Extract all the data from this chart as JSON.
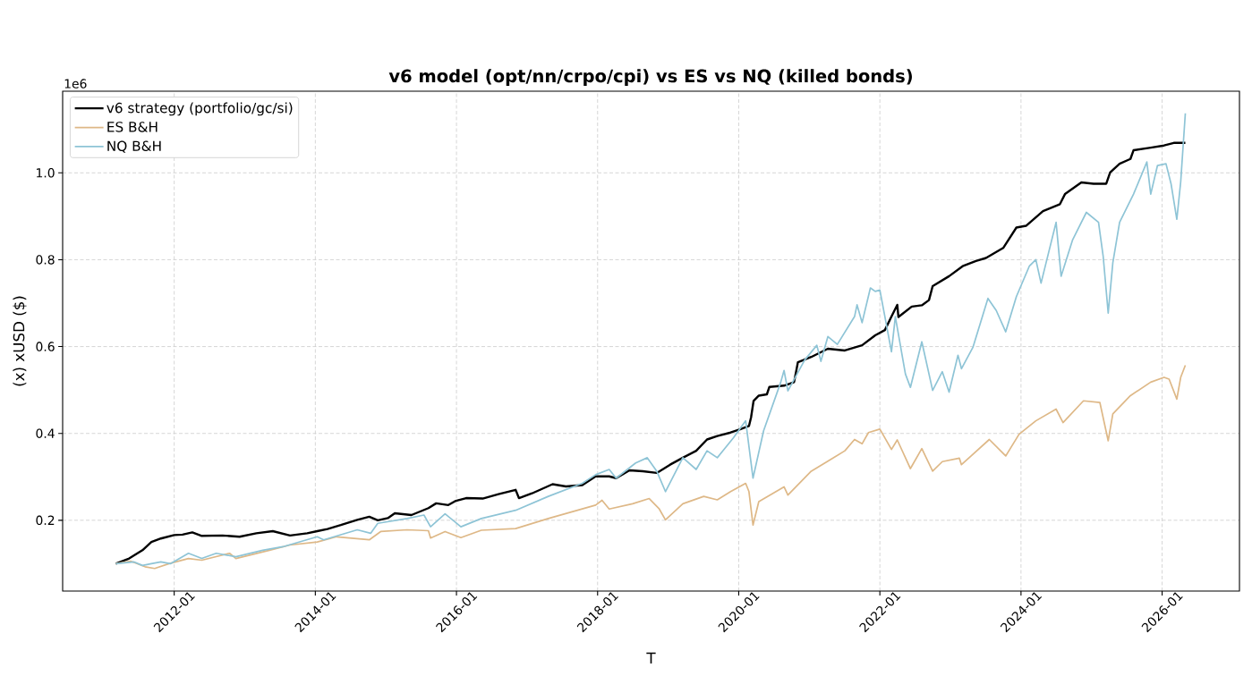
{
  "chart_data": {
    "type": "line",
    "title": "v6 model (opt/nn/crpo/cpi) vs ES vs NQ  (killed bonds)",
    "xlabel": "T",
    "ylabel": "(x) xUSD ($)",
    "annotations": [
      "1e6"
    ],
    "xlim": [
      "2010-06-03",
      "2027-02-05"
    ],
    "ylim": [
      0.037,
      1.188
    ],
    "xticks": [
      {
        "value": "2012-01",
        "label": "2012-01"
      },
      {
        "value": "2014-01",
        "label": "2014-01"
      },
      {
        "value": "2016-01",
        "label": "2016-01"
      },
      {
        "value": "2018-01",
        "label": "2018-01"
      },
      {
        "value": "2020-01",
        "label": "2020-01"
      },
      {
        "value": "2022-01",
        "label": "2022-01"
      },
      {
        "value": "2024-01",
        "label": "2024-01"
      },
      {
        "value": "2026-01",
        "label": "2026-01"
      }
    ],
    "yticks": [
      {
        "value": 0.2,
        "label": "0.2"
      },
      {
        "value": 0.4,
        "label": "0.4"
      },
      {
        "value": 0.6,
        "label": "0.6"
      },
      {
        "value": 0.8,
        "label": "0.8"
      },
      {
        "value": 1.0,
        "label": "1.0"
      }
    ],
    "grid": true,
    "legend": "top left",
    "marker": "none",
    "line_style": "solid",
    "series": [
      {
        "name": "v6 strategy (portfolio/gc/si)",
        "color": "#000000",
        "x": [
          "2011-03-05",
          "2011-05-13",
          "2011-07-21",
          "2011-09-05",
          "2011-10-24",
          "2012-01-01",
          "2012-02-13",
          "2012-04-04",
          "2012-05-23",
          "2012-09-08",
          "2012-12-05",
          "2013-03-02",
          "2013-05-26",
          "2013-08-23",
          "2013-11-20",
          "2014-01-11",
          "2014-03-05",
          "2014-05-13",
          "2014-08-06",
          "2014-10-07",
          "2014-11-20",
          "2015-01-11",
          "2015-02-16",
          "2015-05-13",
          "2015-08-09",
          "2015-09-18",
          "2015-11-20",
          "2015-12-25",
          "2016-02-20",
          "2016-05-16",
          "2016-08-06",
          "2016-11-03",
          "2016-11-20",
          "2017-01-27",
          "2017-05-13",
          "2017-07-21",
          "2017-10-14",
          "2017-12-22",
          "2018-03-02",
          "2018-04-07",
          "2018-06-15",
          "2018-08-23",
          "2018-11-03",
          "2019-01-11",
          "2019-03-18",
          "2019-05-26",
          "2019-07-21",
          "2019-09-12",
          "2019-11-20",
          "2020-01-11",
          "2020-02-23",
          "2020-03-05",
          "2020-03-18",
          "2020-04-14",
          "2020-05-26",
          "2020-06-08",
          "2020-08-23",
          "2020-10-14",
          "2020-11-03",
          "2021-01-11",
          "2021-04-07",
          "2021-07-04",
          "2021-10-01",
          "2021-12-08",
          "2022-01-27",
          "2022-03-02",
          "2022-04-01",
          "2022-04-07",
          "2022-06-15",
          "2022-08-06",
          "2022-09-12",
          "2022-10-01",
          "2022-12-25",
          "2023-03-05",
          "2023-05-13",
          "2023-07-04",
          "2023-10-01",
          "2023-12-08",
          "2024-01-27",
          "2024-04-24",
          "2024-07-21",
          "2024-08-16",
          "2024-11-09",
          "2025-01-11",
          "2025-03-18",
          "2025-04-07",
          "2025-05-26",
          "2025-07-21",
          "2025-08-06",
          "2025-11-03",
          "2026-01-11",
          "2026-03-02",
          "2026-05-01"
        ],
        "values": [
          0.1,
          0.112,
          0.131,
          0.15,
          0.158,
          0.166,
          0.167,
          0.172,
          0.164,
          0.165,
          0.162,
          0.17,
          0.175,
          0.165,
          0.17,
          0.175,
          0.18,
          0.189,
          0.201,
          0.208,
          0.2,
          0.205,
          0.216,
          0.212,
          0.228,
          0.239,
          0.235,
          0.244,
          0.251,
          0.25,
          0.26,
          0.27,
          0.251,
          0.262,
          0.283,
          0.278,
          0.281,
          0.301,
          0.301,
          0.297,
          0.315,
          0.313,
          0.309,
          0.328,
          0.344,
          0.36,
          0.386,
          0.394,
          0.402,
          0.41,
          0.417,
          0.437,
          0.475,
          0.487,
          0.49,
          0.507,
          0.51,
          0.518,
          0.564,
          0.576,
          0.595,
          0.591,
          0.603,
          0.626,
          0.638,
          0.669,
          0.696,
          0.668,
          0.692,
          0.695,
          0.707,
          0.739,
          0.762,
          0.785,
          0.797,
          0.804,
          0.827,
          0.874,
          0.878,
          0.912,
          0.928,
          0.951,
          0.978,
          0.975,
          0.975,
          1.001,
          1.021,
          1.032,
          1.052,
          1.058,
          1.063,
          1.069,
          1.069
        ]
      },
      {
        "name": "ES B&H",
        "color": "#deb887",
        "x": [
          "2011-03-05",
          "2011-05-20",
          "2011-08-03",
          "2011-09-22",
          "2011-12-05",
          "2012-03-15",
          "2012-05-23",
          "2012-10-14",
          "2012-11-16",
          "2013-05-09",
          "2013-08-23",
          "2014-01-11",
          "2014-04-21",
          "2014-10-07",
          "2014-12-05",
          "2015-04-21",
          "2015-08-09",
          "2015-08-20",
          "2015-11-03",
          "2016-01-24",
          "2016-05-09",
          "2016-11-03",
          "2017-04-21",
          "2017-12-22",
          "2018-01-24",
          "2018-03-02",
          "2018-07-01",
          "2018-09-25",
          "2018-11-16",
          "2018-12-18",
          "2019-03-18",
          "2019-07-04",
          "2019-09-12",
          "2019-11-20",
          "2020-02-06",
          "2020-02-23",
          "2020-03-15",
          "2020-04-14",
          "2020-08-23",
          "2020-09-12",
          "2021-01-11",
          "2021-04-07",
          "2021-07-04",
          "2021-08-23",
          "2021-10-01",
          "2021-11-03",
          "2022-01-01",
          "2022-03-02",
          "2022-04-01",
          "2022-06-08",
          "2022-08-06",
          "2022-10-01",
          "2022-11-20",
          "2023-02-16",
          "2023-02-27",
          "2023-07-21",
          "2023-10-14",
          "2023-12-22",
          "2024-03-18",
          "2024-07-01",
          "2024-08-06",
          "2024-11-20",
          "2025-02-13",
          "2025-03-28",
          "2025-04-21",
          "2025-07-21",
          "2025-11-03",
          "2026-01-11",
          "2026-02-06",
          "2026-03-18",
          "2026-04-07",
          "2026-05-01"
        ],
        "values": [
          0.1,
          0.106,
          0.093,
          0.089,
          0.1,
          0.112,
          0.108,
          0.124,
          0.112,
          0.131,
          0.143,
          0.15,
          0.162,
          0.155,
          0.174,
          0.178,
          0.176,
          0.159,
          0.174,
          0.16,
          0.177,
          0.181,
          0.204,
          0.235,
          0.246,
          0.226,
          0.238,
          0.25,
          0.226,
          0.201,
          0.238,
          0.255,
          0.247,
          0.266,
          0.285,
          0.266,
          0.189,
          0.243,
          0.277,
          0.258,
          0.313,
          0.336,
          0.36,
          0.386,
          0.376,
          0.402,
          0.41,
          0.363,
          0.385,
          0.319,
          0.365,
          0.313,
          0.335,
          0.343,
          0.328,
          0.386,
          0.348,
          0.398,
          0.429,
          0.456,
          0.425,
          0.475,
          0.471,
          0.383,
          0.445,
          0.487,
          0.518,
          0.529,
          0.525,
          0.479,
          0.529,
          0.557
        ]
      },
      {
        "name": "NQ B&H",
        "color": "#8ec4d6",
        "x": [
          "2011-03-05",
          "2011-06-08",
          "2011-07-21",
          "2011-09-05",
          "2011-10-24",
          "2011-12-12",
          "2012-03-15",
          "2012-05-23",
          "2012-08-06",
          "2012-11-16",
          "2013-04-04",
          "2013-07-17",
          "2014-01-11",
          "2014-02-13",
          "2014-08-06",
          "2014-10-14",
          "2014-11-20",
          "2015-04-21",
          "2015-07-17",
          "2015-08-20",
          "2015-11-03",
          "2016-01-24",
          "2016-05-09",
          "2016-11-03",
          "2017-04-21",
          "2017-10-14",
          "2017-12-22",
          "2018-03-02",
          "2018-04-07",
          "2018-07-17",
          "2018-09-15",
          "2018-11-03",
          "2018-12-18",
          "2019-03-18",
          "2019-05-26",
          "2019-07-21",
          "2019-09-12",
          "2019-12-05",
          "2020-02-06",
          "2020-03-15",
          "2020-05-09",
          "2020-08-06",
          "2020-08-23",
          "2020-09-12",
          "2020-12-08",
          "2021-02-09",
          "2021-03-02",
          "2021-04-07",
          "2021-05-26",
          "2021-08-23",
          "2021-09-05",
          "2021-10-01",
          "2021-11-13",
          "2021-12-08",
          "2022-01-01",
          "2022-01-27",
          "2022-03-02",
          "2022-03-22",
          "2022-05-13",
          "2022-06-08",
          "2022-08-06",
          "2022-10-01",
          "2022-11-20",
          "2022-12-25",
          "2023-02-09",
          "2023-02-27",
          "2023-04-28",
          "2023-07-14",
          "2023-08-26",
          "2023-10-14",
          "2023-12-08",
          "2024-02-13",
          "2024-03-18",
          "2024-04-14",
          "2024-07-01",
          "2024-07-27",
          "2024-09-25",
          "2024-12-05",
          "2025-02-06",
          "2025-03-02",
          "2025-03-28",
          "2025-04-21",
          "2025-05-26",
          "2025-08-06",
          "2025-10-14",
          "2025-11-03",
          "2025-12-08",
          "2026-01-21",
          "2026-02-16",
          "2026-03-18",
          "2026-04-07",
          "2026-05-01"
        ],
        "values": [
          0.1,
          0.104,
          0.096,
          0.1,
          0.104,
          0.1,
          0.124,
          0.112,
          0.124,
          0.116,
          0.131,
          0.139,
          0.162,
          0.155,
          0.178,
          0.17,
          0.193,
          0.204,
          0.212,
          0.185,
          0.215,
          0.185,
          0.204,
          0.223,
          0.255,
          0.285,
          0.305,
          0.317,
          0.297,
          0.332,
          0.344,
          0.313,
          0.266,
          0.344,
          0.317,
          0.36,
          0.344,
          0.39,
          0.429,
          0.297,
          0.406,
          0.518,
          0.545,
          0.498,
          0.569,
          0.603,
          0.566,
          0.623,
          0.605,
          0.669,
          0.696,
          0.655,
          0.735,
          0.727,
          0.73,
          0.669,
          0.588,
          0.669,
          0.537,
          0.506,
          0.611,
          0.499,
          0.542,
          0.495,
          0.58,
          0.549,
          0.599,
          0.711,
          0.683,
          0.634,
          0.715,
          0.785,
          0.8,
          0.746,
          0.886,
          0.762,
          0.846,
          0.909,
          0.886,
          0.808,
          0.677,
          0.793,
          0.886,
          0.951,
          1.025,
          0.951,
          1.017,
          1.021,
          0.975,
          0.893,
          0.979,
          1.137
        ]
      }
    ]
  }
}
